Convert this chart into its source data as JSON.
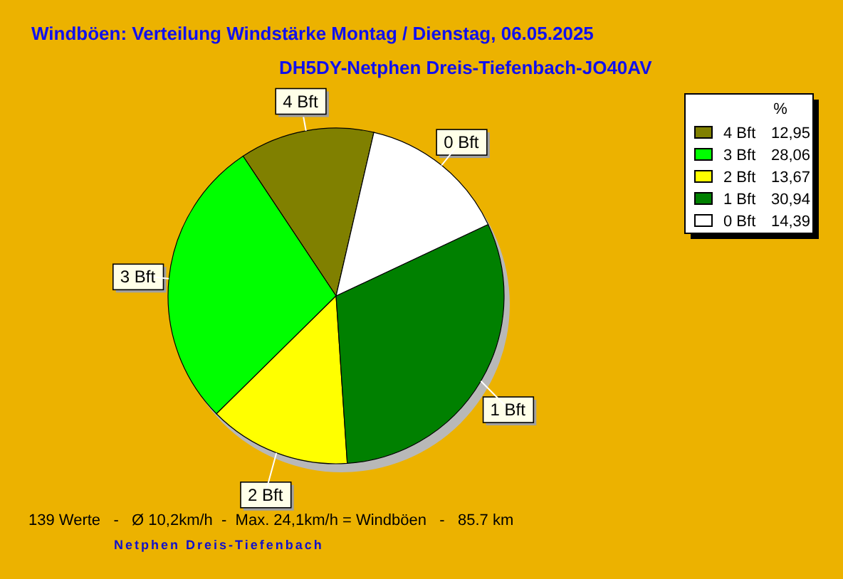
{
  "chart_data": {
    "type": "pie",
    "title": "Windböen: Verteilung Windstärke Montag / Dienstag, 06.05.2025",
    "subtitle": "DH5DY-Netphen Dreis-Tiefenbach-JO40AV",
    "legend_title": "%",
    "legend": "top right",
    "categories": [
      "4 Bft",
      "3 Bft",
      "2 Bft",
      "1 Bft",
      "0 Bft"
    ],
    "values": [
      12.95,
      28.06,
      13.67,
      30.94,
      14.39
    ],
    "value_labels": [
      "12,95",
      "28,06",
      "13,67",
      "30,94",
      "14,39"
    ],
    "colors": [
      "#808000",
      "#00ff00",
      "#ffff00",
      "#008000",
      "#ffffff"
    ],
    "annotations": [
      "139 Werte   -   Ø 10,2km/h  -  Max. 24,1km/h = Windböen   -   85.7 km",
      "Netphen Dreis-Tiefenbach"
    ]
  }
}
